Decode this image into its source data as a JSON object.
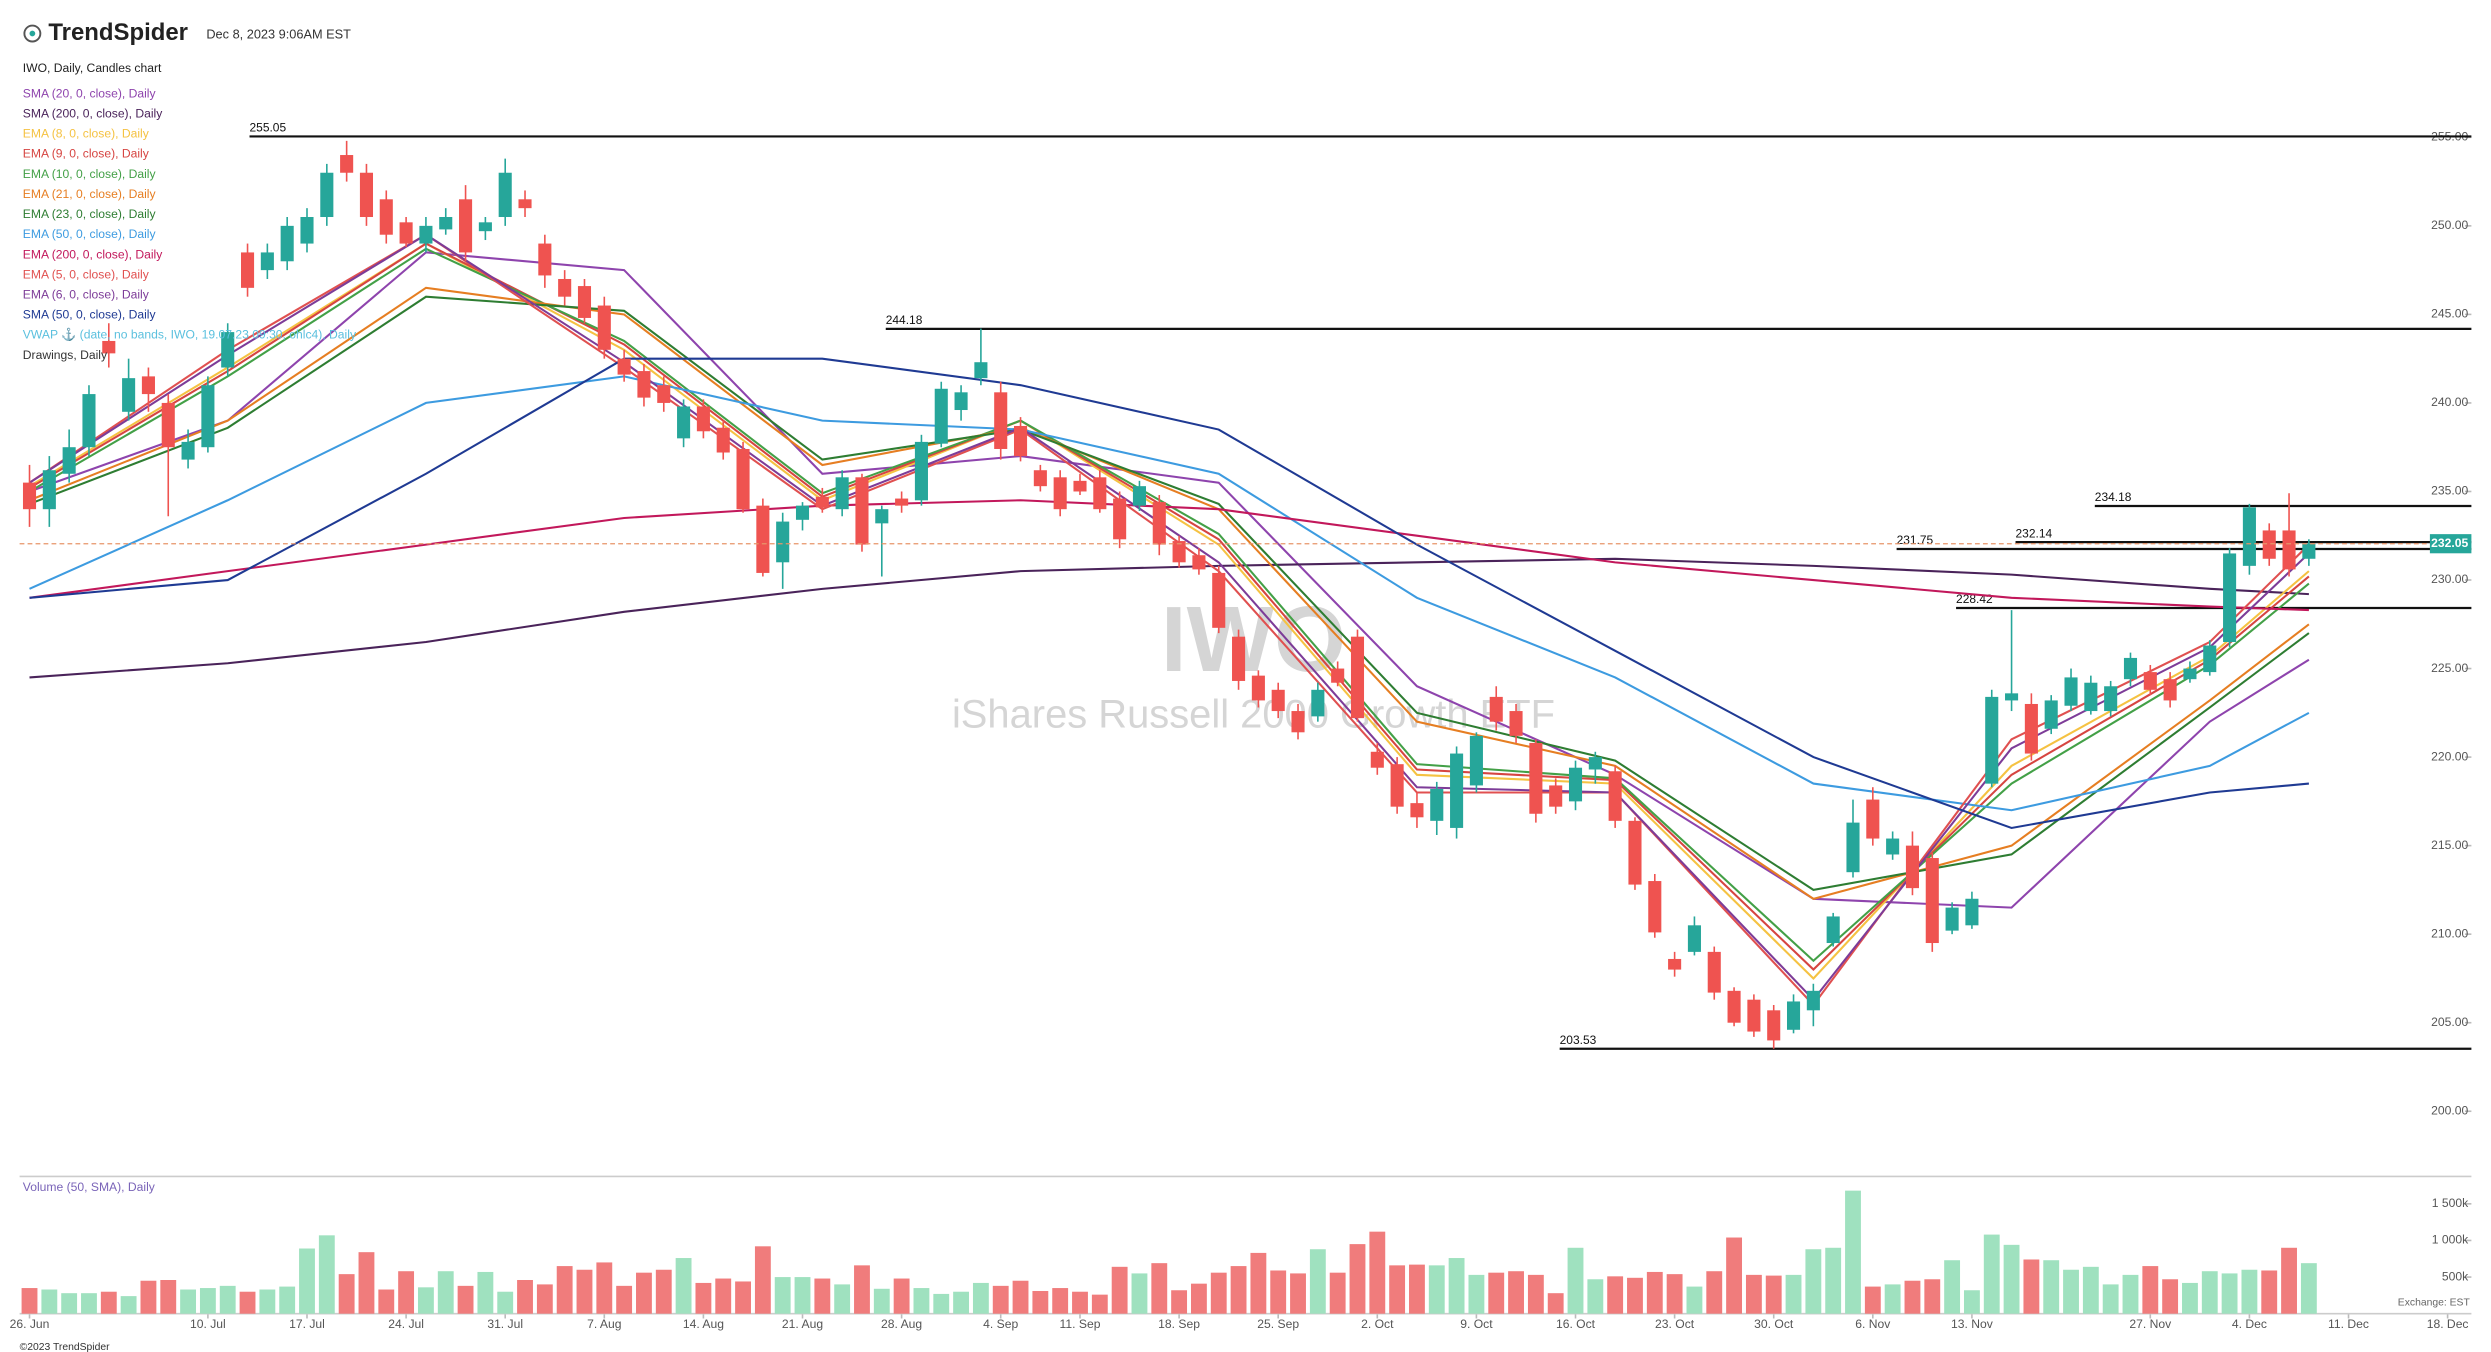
{
  "header": {
    "brand": "TrendSpider",
    "timestamp": "Dec 8, 2023 9:06AM EST"
  },
  "footer": {
    "copyright": "©2023 TrendSpider",
    "exchange": "Exchange: EST"
  },
  "chart_data": {
    "type": "candlestick",
    "title": "IWO, Daily, Candles chart",
    "watermark": "IWO",
    "watermark_subtitle": "iShares Russell 2000 Growth ETF",
    "up_color": "#26a69a",
    "down_color": "#ef5350",
    "open": [
      235.5,
      234,
      236,
      237.5,
      243.5,
      239.5,
      241.5,
      240,
      236.8,
      237.5,
      242,
      248.5,
      247.5,
      248,
      249,
      250.5,
      254,
      253,
      251.5,
      250.2,
      249,
      249.8,
      251.5,
      249.7,
      250.5,
      251.5,
      249,
      247,
      246.6,
      245.5,
      242.5,
      241.8,
      241,
      238,
      239.8,
      238.6,
      237.4,
      234.2,
      231,
      233.4,
      234.7,
      234,
      235.8,
      233.2,
      234.6,
      234.5,
      237.7,
      239.6,
      241.4,
      240.6,
      238.7,
      236.2,
      235.8,
      235.6,
      235.8,
      234.6,
      234.2,
      234.4,
      232.2,
      231.4,
      230.4,
      226.8,
      224.6,
      223.8,
      222.6,
      222.3,
      225,
      226.8,
      220.3,
      219.6,
      217.4,
      216.4,
      216,
      218.4,
      223.4,
      222.6,
      220.8,
      218.4,
      217.5,
      219.3,
      219.2,
      216.4,
      213,
      208.6,
      209,
      209,
      206.8,
      206.3,
      205.7,
      204.6,
      205.7,
      209.5,
      213.5,
      217.6,
      214.5,
      215,
      214.3,
      210.2,
      210.5,
      218.5,
      223.2,
      223,
      221.6,
      222.9,
      222.6,
      222.6,
      224.4,
      224.8,
      224.4,
      224.4,
      224.8,
      226.5,
      230.8,
      232.8,
      232.8,
      231.2
    ],
    "high": [
      236.5,
      237,
      238.5,
      241,
      244.5,
      242.5,
      242,
      240.5,
      238.5,
      241.5,
      244.5,
      249,
      249,
      250.5,
      251,
      253.5,
      254.8,
      253.5,
      252,
      250.5,
      250.5,
      251,
      252.3,
      250.5,
      253.8,
      252,
      249.5,
      247.5,
      247,
      246,
      243,
      242.2,
      241.5,
      240.2,
      240.2,
      239,
      237.8,
      234.6,
      233.8,
      234.4,
      235.2,
      236.2,
      236,
      234.2,
      235,
      238.2,
      241.2,
      241,
      244.2,
      241.2,
      239.2,
      236.5,
      236.2,
      236,
      236.2,
      235,
      235.6,
      234.8,
      232.5,
      231.8,
      230.8,
      227.2,
      224.9,
      224.2,
      223,
      224.2,
      225.4,
      227.2,
      220.8,
      220,
      218,
      218.6,
      220.6,
      221.4,
      224,
      223,
      221,
      218.8,
      219.8,
      220.3,
      219.5,
      216.6,
      213.4,
      209,
      211,
      209.3,
      207,
      206.6,
      206,
      206.6,
      207.2,
      211.2,
      217.6,
      218.3,
      215.8,
      215.8,
      214.6,
      211.8,
      212.4,
      223.8,
      228.3,
      223.6,
      223.5,
      225,
      224.6,
      224.3,
      225.9,
      225.2,
      224.8,
      225.4,
      226.6,
      231.8,
      234.3,
      233.2,
      234.9,
      232.3
    ],
    "low": [
      233,
      233,
      235.5,
      237,
      242,
      239,
      239.5,
      233.6,
      236.3,
      237.2,
      241.5,
      246,
      247,
      247.5,
      248.5,
      250,
      252.5,
      250,
      249,
      248.8,
      248.5,
      249.5,
      248,
      249.2,
      250,
      250.5,
      246.5,
      245.5,
      244.5,
      242.5,
      241.2,
      239.8,
      239.5,
      237.5,
      238,
      236.8,
      233.8,
      230.2,
      229.5,
      232.8,
      233.8,
      233.6,
      231.6,
      230.2,
      233.8,
      234.2,
      237.5,
      239,
      241,
      236.8,
      236.7,
      235,
      233.6,
      234.8,
      233.8,
      231.8,
      233.9,
      231.4,
      230.7,
      230.3,
      227,
      223.8,
      222.8,
      222.2,
      221,
      222,
      224,
      222,
      219,
      216.8,
      216,
      215.6,
      215.4,
      218,
      221.5,
      220.8,
      216.3,
      216.8,
      217,
      218.5,
      216,
      212.5,
      209.8,
      207.6,
      208.8,
      206.3,
      204.8,
      204.2,
      203.53,
      204.4,
      204.8,
      209.3,
      213.2,
      215,
      214.2,
      212.2,
      209,
      210,
      210.3,
      218.3,
      222.6,
      219.8,
      221.3,
      222.6,
      222.4,
      222.3,
      224,
      223.5,
      222.8,
      224.2,
      224.6,
      226.2,
      230.3,
      230.8,
      230.2,
      230.8
    ],
    "close": [
      234,
      236.2,
      237.5,
      240.5,
      242.8,
      241.4,
      240.5,
      237.5,
      237.8,
      241,
      244,
      246.5,
      248.5,
      250,
      250.5,
      253,
      253,
      250.5,
      249.5,
      249,
      250,
      250.5,
      248.5,
      250.2,
      253,
      251,
      247.2,
      246,
      244.8,
      243,
      241.6,
      240.3,
      240,
      239.8,
      238.4,
      237.2,
      234,
      230.4,
      233.3,
      234.2,
      234.1,
      235.8,
      232,
      234,
      234.2,
      237.8,
      240.8,
      240.6,
      242.3,
      237.4,
      237,
      235.3,
      234,
      235,
      234,
      232.3,
      235.3,
      232,
      231,
      230.6,
      227.3,
      224.3,
      223.2,
      222.6,
      221.4,
      223.8,
      224.2,
      222.2,
      219.4,
      217.2,
      216.6,
      218.2,
      220.2,
      221.2,
      222,
      221.2,
      216.8,
      217.2,
      219.4,
      220,
      216.4,
      212.8,
      210.1,
      208,
      210.5,
      206.7,
      205,
      204.5,
      204,
      206.2,
      206.8,
      211,
      216.3,
      215.4,
      215.4,
      212.6,
      209.5,
      211.5,
      212,
      223.4,
      223.6,
      220.2,
      223.2,
      224.5,
      224.2,
      224,
      225.6,
      223.8,
      223.2,
      225,
      226.3,
      231.5,
      234.1,
      231.2,
      230.6,
      232.05
    ],
    "xlim": [
      -0.5,
      123.2
    ],
    "xticks": [
      {
        "value": 0,
        "label": "26. Jun"
      },
      {
        "value": 9,
        "label": "10. Jul"
      },
      {
        "value": 14,
        "label": "17. Jul"
      },
      {
        "value": 19,
        "label": "24. Jul"
      },
      {
        "value": 24,
        "label": "31. Jul"
      },
      {
        "value": 29,
        "label": "7. Aug"
      },
      {
        "value": 34,
        "label": "14. Aug"
      },
      {
        "value": 39,
        "label": "21. Aug"
      },
      {
        "value": 44,
        "label": "28. Aug"
      },
      {
        "value": 49,
        "label": "4. Sep"
      },
      {
        "value": 53,
        "label": "11. Sep"
      },
      {
        "value": 58,
        "label": "18. Sep"
      },
      {
        "value": 63,
        "label": "25. Sep"
      },
      {
        "value": 68,
        "label": "2. Oct"
      },
      {
        "value": 73,
        "label": "9. Oct"
      },
      {
        "value": 78,
        "label": "16. Oct"
      },
      {
        "value": 83,
        "label": "23. Oct"
      },
      {
        "value": 88,
        "label": "30. Oct"
      },
      {
        "value": 93,
        "label": "6. Nov"
      },
      {
        "value": 98,
        "label": "13. Nov"
      },
      {
        "value": 107,
        "label": "27. Nov"
      },
      {
        "value": 112,
        "label": "4. Dec"
      },
      {
        "value": 117,
        "label": "11. Dec"
      },
      {
        "value": 122,
        "label": "18. Dec"
      }
    ],
    "ylim": [
      196.5,
      259.6
    ],
    "yticks": [
      {
        "value": 200,
        "label": "200.00"
      },
      {
        "value": 205,
        "label": "205.00"
      },
      {
        "value": 210,
        "label": "210.00"
      },
      {
        "value": 215,
        "label": "215.00"
      },
      {
        "value": 220,
        "label": "220.00"
      },
      {
        "value": 225,
        "label": "225.00"
      },
      {
        "value": 230,
        "label": "230.00"
      },
      {
        "value": 235,
        "label": "235.00"
      },
      {
        "value": 240,
        "label": "240.00"
      },
      {
        "value": 245,
        "label": "245.00"
      },
      {
        "value": 250,
        "label": "250.00"
      },
      {
        "value": 255,
        "label": "255.00"
      }
    ],
    "series": [
      {
        "name": "SMA (20, 0, close), Daily",
        "color": "#8e44ad",
        "x": [
          0,
          10,
          20,
          30,
          40,
          50,
          60,
          70,
          80,
          90,
          100,
          110,
          115
        ],
        "values": [
          235,
          239,
          248.5,
          247.5,
          236,
          237,
          235.5,
          224,
          219,
          212,
          211.5,
          222,
          225.5
        ]
      },
      {
        "name": "SMA (200, 0, close), Daily",
        "color": "#4a235a",
        "x": [
          0,
          10,
          20,
          30,
          40,
          50,
          60,
          70,
          80,
          90,
          100,
          110,
          115
        ],
        "values": [
          224.5,
          225.3,
          226.5,
          228.2,
          229.5,
          230.5,
          230.8,
          231,
          231.2,
          230.8,
          230.3,
          229.5,
          229.2
        ]
      },
      {
        "name": "EMA (8, 0, close), Daily",
        "color": "#f5c242",
        "x": [
          0,
          10,
          20,
          30,
          40,
          50,
          60,
          70,
          80,
          90,
          100,
          110,
          115
        ],
        "values": [
          235.3,
          242,
          249,
          243,
          234.5,
          239,
          232,
          219,
          218.5,
          207.5,
          219.5,
          225.7,
          230.5
        ]
      },
      {
        "name": "EMA (9, 0, close), Daily",
        "color": "#d64541",
        "x": [
          0,
          10,
          20,
          30,
          40,
          50,
          60,
          70,
          80,
          90,
          100,
          110,
          115
        ],
        "values": [
          235.2,
          241.8,
          249,
          243.3,
          234.7,
          239,
          232.3,
          219.3,
          218.7,
          208,
          219,
          225.5,
          230.2
        ]
      },
      {
        "name": "EMA (10, 0, close), Daily",
        "color": "#43a047",
        "x": [
          0,
          10,
          20,
          30,
          40,
          50,
          60,
          70,
          80,
          90,
          100,
          110,
          115
        ],
        "values": [
          235,
          241.5,
          248.7,
          243.5,
          234.9,
          239,
          232.6,
          219.6,
          218.8,
          208.5,
          218.5,
          225.2,
          229.8
        ]
      },
      {
        "name": "EMA (21, 0, close), Daily",
        "color": "#e67e22",
        "x": [
          0,
          10,
          20,
          30,
          40,
          50,
          60,
          70,
          80,
          90,
          100,
          110,
          115
        ],
        "values": [
          234.5,
          239,
          246.5,
          245,
          236.5,
          238.6,
          234,
          222,
          219.5,
          212,
          215,
          223.2,
          227.5
        ]
      },
      {
        "name": "EMA (23, 0, close), Daily",
        "color": "#2e7d32",
        "x": [
          0,
          10,
          20,
          30,
          40,
          50,
          60,
          70,
          80,
          90,
          100,
          110,
          115
        ],
        "values": [
          234.3,
          238.6,
          246,
          245.2,
          236.8,
          238.5,
          234.3,
          222.5,
          219.8,
          212.5,
          214.5,
          222.8,
          227
        ]
      },
      {
        "name": "EMA (50, 0, close), Daily",
        "color": "#3d9be0",
        "x": [
          0,
          10,
          20,
          30,
          40,
          50,
          60,
          70,
          80,
          90,
          100,
          110,
          115
        ],
        "values": [
          229.5,
          234.5,
          240,
          241.5,
          239,
          238.5,
          236,
          229,
          224.5,
          218.5,
          217,
          219.5,
          222.5
        ]
      },
      {
        "name": "EMA (200, 0, close), Daily",
        "color": "#c2185b",
        "x": [
          0,
          10,
          20,
          30,
          40,
          50,
          60,
          70,
          80,
          90,
          100,
          110,
          115
        ],
        "values": [
          229,
          230.5,
          232,
          233.5,
          234.2,
          234.5,
          234,
          232.5,
          231,
          230,
          229,
          228.5,
          228.3
        ]
      },
      {
        "name": "EMA (5, 0, close), Daily",
        "color": "#e05050",
        "x": [
          0,
          10,
          20,
          30,
          40,
          50,
          60,
          70,
          80,
          90,
          100,
          110,
          115
        ],
        "values": [
          235.5,
          243,
          249.5,
          242,
          234,
          238.5,
          230.5,
          218,
          218,
          206,
          221,
          226.5,
          232
        ]
      },
      {
        "name": "EMA (6, 0, close), Daily",
        "color": "#7d3c98",
        "x": [
          0,
          10,
          20,
          30,
          40,
          50,
          60,
          70,
          80,
          90,
          100,
          110,
          115
        ],
        "values": [
          235.5,
          242.7,
          249.5,
          242.3,
          234.2,
          238.6,
          231,
          218.3,
          218,
          206.3,
          220.5,
          226.2,
          231.5
        ]
      },
      {
        "name": "SMA (50, 0, close), Daily",
        "color": "#1f3a93",
        "x": [
          0,
          10,
          20,
          30,
          40,
          50,
          60,
          70,
          80,
          90,
          100,
          110,
          115
        ],
        "values": [
          229,
          230,
          236,
          242.5,
          242.5,
          241,
          238.5,
          232,
          226,
          220,
          216,
          218,
          218.5
        ]
      }
    ],
    "extra_legend": [
      {
        "name": "VWAP ⚓ (date, no bands, IWO, 19.07.23 09:30, ohlc4), Daily",
        "color": "#5bc0de"
      },
      {
        "name": "Drawings, Daily",
        "color": "#333333"
      }
    ],
    "levels": [
      {
        "value": 255.05,
        "x": 11.1
      },
      {
        "value": 244.18,
        "x": 43.2
      },
      {
        "value": 234.18,
        "x": 104.2
      },
      {
        "value": 232.14,
        "x": 100.2
      },
      {
        "value": 231.75,
        "x": 94.2
      },
      {
        "value": 228.42,
        "x": 97.2
      },
      {
        "value": 203.53,
        "x": 77.2
      }
    ],
    "volume": {
      "label": "Volume (50, SMA), Daily",
      "up_color": "#9fe1bf",
      "down_color": "#f07c7c",
      "values": [
        350,
        330,
        280,
        280,
        300,
        240,
        450,
        460,
        330,
        350,
        380,
        300,
        330,
        370,
        890,
        1070,
        540,
        840,
        330,
        580,
        360,
        580,
        380,
        570,
        300,
        460,
        400,
        650,
        600,
        700,
        380,
        560,
        600,
        760,
        420,
        480,
        440,
        920,
        500,
        500,
        480,
        400,
        660,
        340,
        480,
        350,
        270,
        300,
        420,
        380,
        450,
        310,
        350,
        300,
        260,
        640,
        550,
        690,
        320,
        410,
        560,
        650,
        830,
        590,
        550,
        880,
        560,
        950,
        1120,
        660,
        670,
        660,
        760,
        530,
        560,
        580,
        530,
        280,
        900,
        470,
        510,
        490,
        570,
        540,
        370,
        580,
        1040,
        530,
        520,
        530,
        880,
        900,
        1680,
        370,
        400,
        450,
        470,
        730,
        320,
        1080,
        940,
        740,
        730,
        600,
        640,
        400,
        530,
        650,
        470,
        420,
        580,
        550,
        600,
        590,
        900,
        690
      ],
      "ylim": [
        0,
        1700
      ],
      "yticks": [
        {
          "value": 500,
          "label": "500k"
        },
        {
          "value": 1000,
          "label": "1 000k"
        },
        {
          "value": 1500,
          "label": "1 500k"
        }
      ]
    }
  }
}
